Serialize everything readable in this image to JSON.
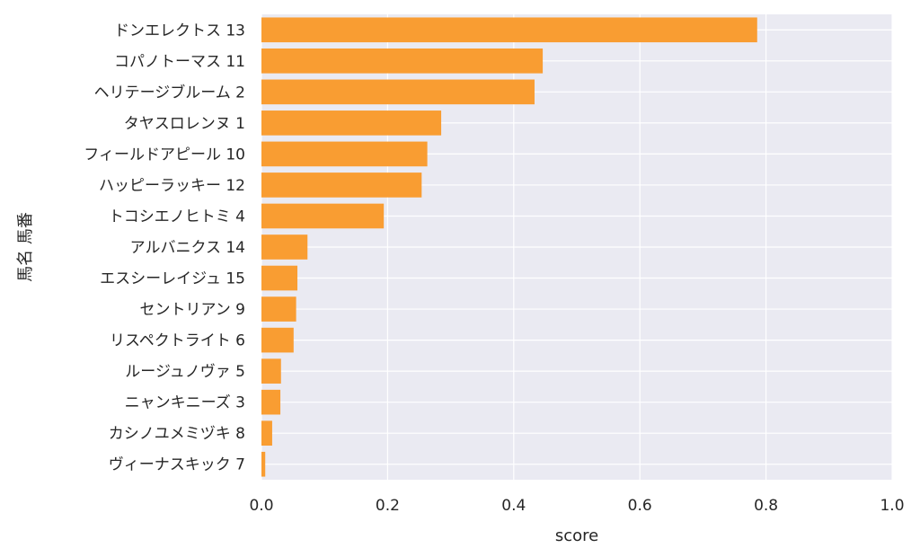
{
  "chart_data": {
    "type": "bar",
    "orientation": "horizontal",
    "categories": [
      "ドンエレクトス 13",
      "コパノトーマス 11",
      "ヘリテージブルーム 2",
      "タヤスロレンヌ 1",
      "フィールドアピール 10",
      "ハッピーラッキー 12",
      "トコシエノヒトミ 4",
      "アルバニクス 14",
      "エスシーレイジュ 15",
      "セントリアン 9",
      "リスペクトライト 6",
      "ルージュノヴァ 5",
      "ニャンキニーズ 3",
      "カシノユメミヅキ 8",
      "ヴィーナスキック 7"
    ],
    "values": [
      0.786,
      0.446,
      0.433,
      0.285,
      0.263,
      0.254,
      0.194,
      0.073,
      0.057,
      0.055,
      0.051,
      0.031,
      0.03,
      0.017,
      0.006
    ],
    "xlabel": "score",
    "ylabel": "馬名 馬番",
    "xlim": [
      0,
      1.0
    ],
    "xticks": [
      "0.0",
      "0.2",
      "0.4",
      "0.6",
      "0.8",
      "1.0"
    ],
    "grid": true,
    "colors": {
      "bar": "#f99d32",
      "plot_background": "#eaeaf2",
      "grid": "#ffffff",
      "text": "#262626"
    }
  }
}
